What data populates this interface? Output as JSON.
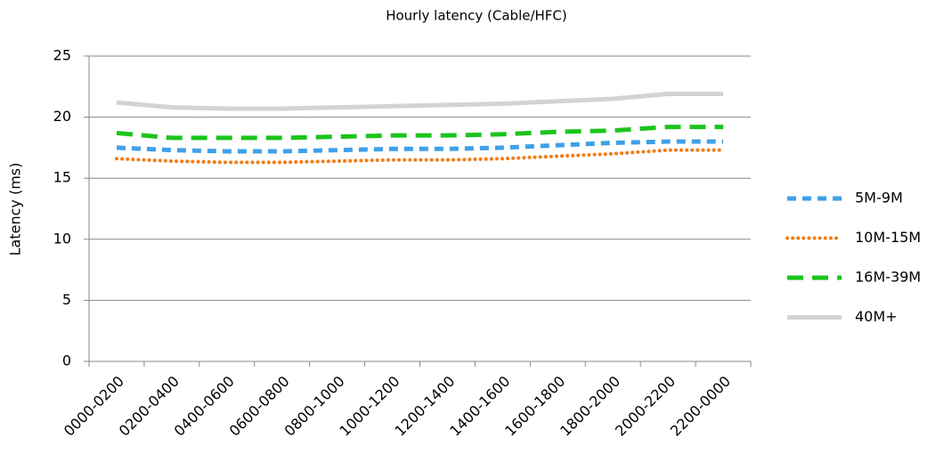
{
  "chart_data": {
    "type": "line",
    "title": "Hourly latency (Cable/HFC)",
    "y_label": "Latency (ms)",
    "categories": [
      "0000-0200",
      "0200-0400",
      "0400-0600",
      "0600-0800",
      "0800-1000",
      "1000-1200",
      "1200-1400",
      "1400-1600",
      "1600-1800",
      "1800-2000",
      "2000-2200",
      "2200-0000"
    ],
    "series": [
      {
        "name": "5M-9M",
        "color": "#3fa0e8",
        "dash": "dashed",
        "values": [
          17.5,
          17.3,
          17.2,
          17.2,
          17.3,
          17.4,
          17.4,
          17.5,
          17.7,
          17.9,
          18.0,
          18.0
        ]
      },
      {
        "name": "10M-15M",
        "color": "#f07d1a",
        "dash": "dotted",
        "values": [
          16.6,
          16.4,
          16.3,
          16.3,
          16.4,
          16.5,
          16.5,
          16.6,
          16.8,
          17.0,
          17.3,
          17.3
        ]
      },
      {
        "name": "16M-39M",
        "color": "#1cc41c",
        "dash": "long-dashed",
        "values": [
          18.7,
          18.3,
          18.3,
          18.3,
          18.4,
          18.5,
          18.5,
          18.6,
          18.8,
          18.9,
          19.2,
          19.2
        ]
      },
      {
        "name": "40M+",
        "color": "#d3d3d3",
        "dash": "solid",
        "values": [
          21.2,
          20.8,
          20.7,
          20.7,
          20.8,
          20.9,
          21.0,
          21.1,
          21.3,
          21.5,
          21.9,
          21.9
        ]
      }
    ],
    "ylim": [
      0,
      25
    ],
    "yticks": [
      0,
      5,
      10,
      15,
      20,
      25
    ],
    "grid": true,
    "legend": "right"
  }
}
